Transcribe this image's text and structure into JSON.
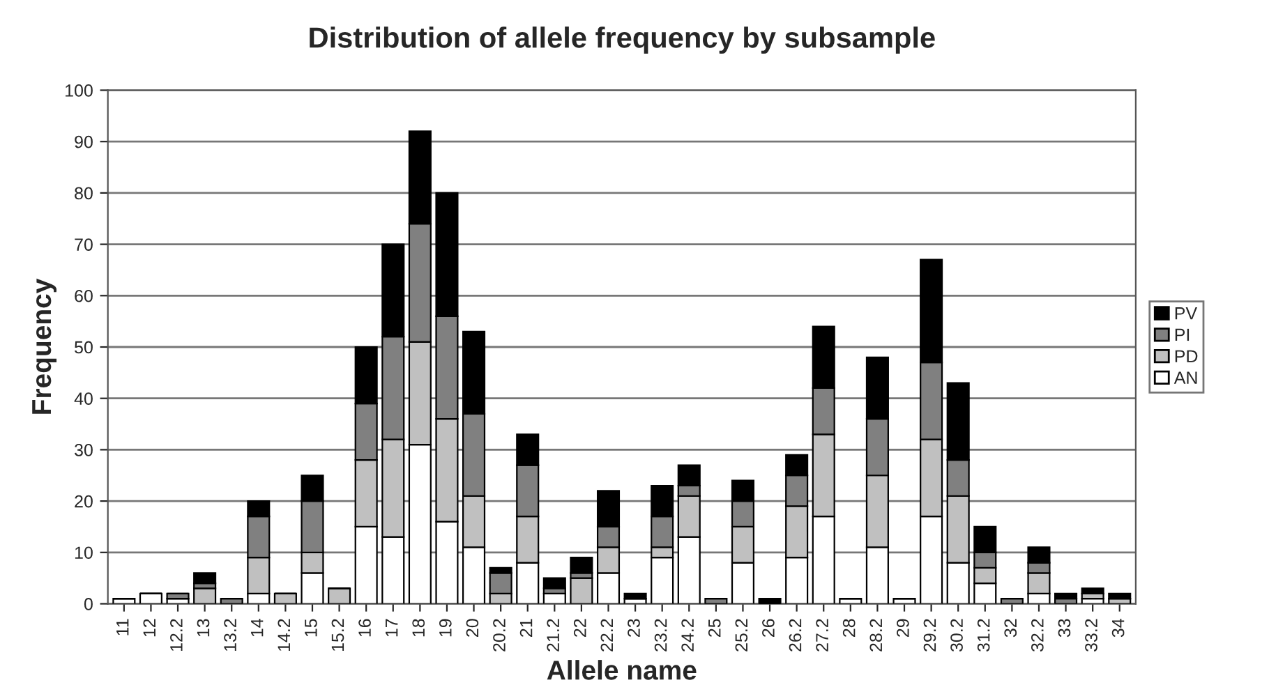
{
  "chart_data": {
    "type": "bar",
    "title": "Distribution of allele frequency by subsample",
    "xlabel": "Allele name",
    "ylabel": "Frequency",
    "stacked": true,
    "grid": "y",
    "legend": "right",
    "ylim": [
      0,
      100
    ],
    "yticks": [
      0,
      10,
      20,
      30,
      40,
      50,
      60,
      70,
      80,
      90,
      100
    ],
    "categories": [
      "11",
      "12",
      "12.2",
      "13",
      "13.2",
      "14",
      "14.2",
      "15",
      "15.2",
      "16",
      "17",
      "18",
      "19",
      "20",
      "20.2",
      "21",
      "21.2",
      "22",
      "22.2",
      "23",
      "23.2",
      "24.2",
      "25",
      "25.2",
      "26",
      "26.2",
      "27.2",
      "28",
      "28.2",
      "29",
      "29.2",
      "30.2",
      "31.2",
      "32",
      "32.2",
      "33",
      "33.2",
      "34"
    ],
    "series": [
      {
        "name": "AN",
        "color": "#ffffff",
        "values": [
          1,
          2,
          1,
          0,
          0,
          2,
          0,
          6,
          0,
          15,
          13,
          31,
          16,
          11,
          0,
          8,
          2,
          0,
          6,
          1,
          9,
          13,
          0,
          8,
          0,
          9,
          17,
          1,
          11,
          1,
          17,
          8,
          4,
          0,
          2,
          0,
          1,
          0
        ]
      },
      {
        "name": "PD",
        "color": "#c0c0c0",
        "values": [
          0,
          0,
          0,
          3,
          0,
          7,
          2,
          4,
          3,
          13,
          19,
          20,
          20,
          10,
          2,
          9,
          0,
          5,
          5,
          0,
          2,
          8,
          0,
          7,
          0,
          10,
          16,
          0,
          14,
          0,
          15,
          13,
          3,
          0,
          4,
          0,
          1,
          1
        ]
      },
      {
        "name": "PI",
        "color": "#808080",
        "values": [
          0,
          0,
          1,
          1,
          1,
          8,
          0,
          10,
          0,
          11,
          20,
          23,
          20,
          16,
          4,
          10,
          1,
          1,
          4,
          0,
          6,
          2,
          1,
          5,
          0,
          6,
          9,
          0,
          11,
          0,
          15,
          7,
          3,
          1,
          2,
          1,
          0,
          0
        ]
      },
      {
        "name": "PV",
        "color": "#000000",
        "values": [
          0,
          0,
          0,
          2,
          0,
          3,
          0,
          5,
          0,
          11,
          18,
          18,
          24,
          16,
          1,
          6,
          2,
          3,
          7,
          1,
          6,
          4,
          0,
          4,
          1,
          4,
          12,
          0,
          12,
          0,
          20,
          15,
          5,
          0,
          3,
          1,
          1,
          1
        ]
      }
    ]
  }
}
